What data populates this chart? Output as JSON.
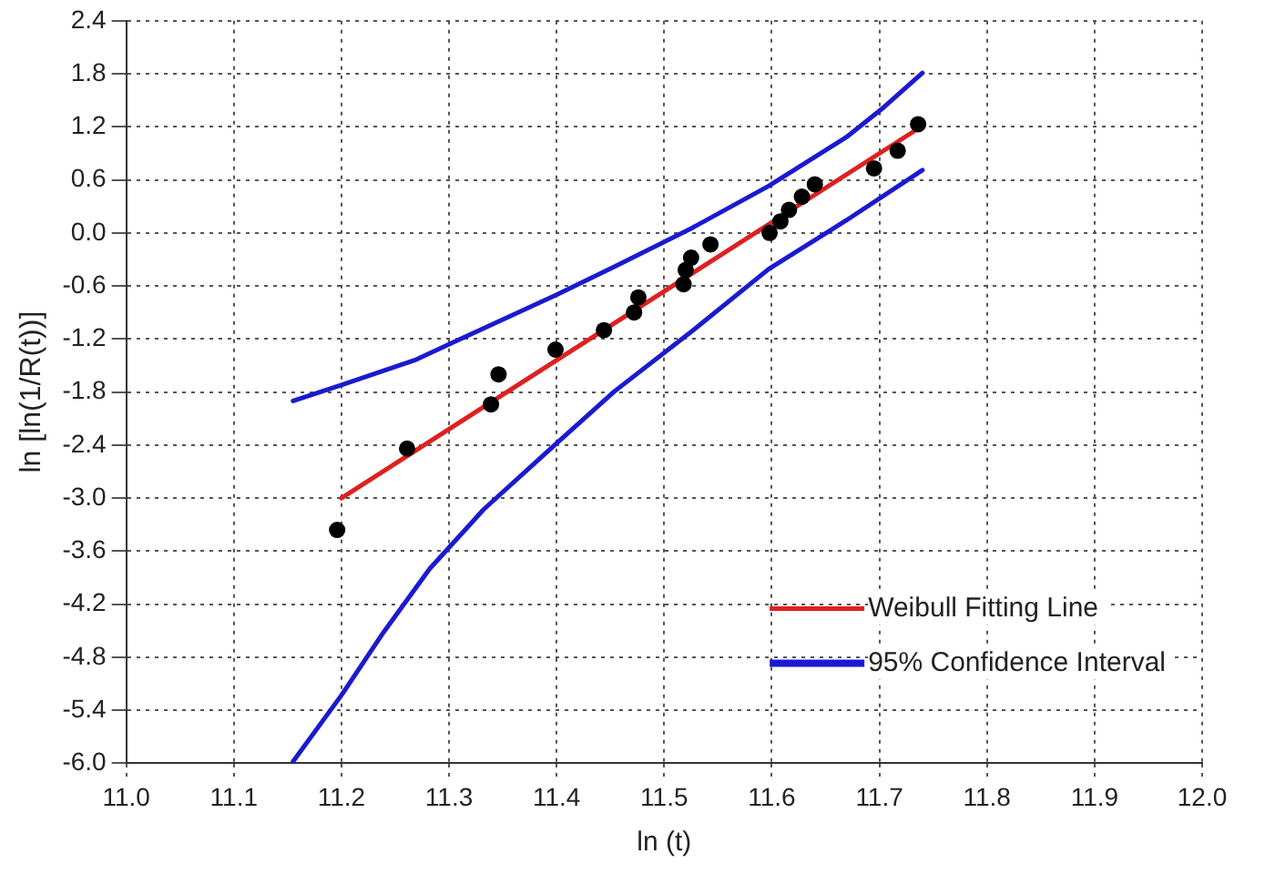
{
  "chart_data": {
    "type": "scatter",
    "xlabel": "ln (t)",
    "ylabel": "ln [ln(1/R(t))]",
    "xlim": [
      11.0,
      12.0
    ],
    "xticks": [
      {
        "value": 11.0,
        "label": "11.0"
      },
      {
        "value": 11.1,
        "label": "11.1"
      },
      {
        "value": 11.2,
        "label": "11.2"
      },
      {
        "value": 11.3,
        "label": "11.3"
      },
      {
        "value": 11.4,
        "label": "11.4"
      },
      {
        "value": 11.5,
        "label": "11.5"
      },
      {
        "value": 11.6,
        "label": "11.6"
      },
      {
        "value": 11.7,
        "label": "11.7"
      },
      {
        "value": 11.8,
        "label": "11.8"
      },
      {
        "value": 11.9,
        "label": "11.9"
      },
      {
        "value": 12.0,
        "label": "12.0"
      }
    ],
    "ylim": [
      -6.0,
      2.4
    ],
    "yticks": [
      {
        "value": -6.0,
        "label": "-6.0"
      },
      {
        "value": -5.4,
        "label": "-5.4"
      },
      {
        "value": -4.8,
        "label": "-4.8"
      },
      {
        "value": -4.2,
        "label": "-4.2"
      },
      {
        "value": -3.6,
        "label": "-3.6"
      },
      {
        "value": -3.0,
        "label": "-3.0"
      },
      {
        "value": -2.4,
        "label": "-2.4"
      },
      {
        "value": -1.8,
        "label": "-1.8"
      },
      {
        "value": -1.2,
        "label": "-1.2"
      },
      {
        "value": -0.6,
        "label": "-0.6"
      },
      {
        "value": 0.0,
        "label": "0.0"
      },
      {
        "value": 0.6,
        "label": "0.6"
      },
      {
        "value": 1.2,
        "label": "1.2"
      },
      {
        "value": 1.8,
        "label": "1.8"
      },
      {
        "value": 2.4,
        "label": "2.4"
      }
    ],
    "grid": true,
    "legend": "bottom right",
    "series": [
      {
        "marker": "circle",
        "color": "#000000",
        "x": [
          11.196,
          11.261,
          11.339,
          11.346,
          11.399,
          11.444,
          11.472,
          11.476,
          11.518,
          11.52,
          11.525,
          11.543,
          11.598,
          11.608,
          11.616,
          11.628,
          11.64,
          11.695,
          11.717,
          11.736
        ],
        "values": [
          -3.36,
          -2.44,
          -1.94,
          -1.6,
          -1.32,
          -1.1,
          -0.9,
          -0.73,
          -0.58,
          -0.42,
          -0.28,
          -0.13,
          0.0,
          0.13,
          0.26,
          0.41,
          0.55,
          0.73,
          0.93,
          1.23
        ]
      },
      {
        "type": "line",
        "marker": "none",
        "name": "Weibull Fitting Line",
        "color": "#e02020",
        "x": [
          11.2,
          11.736
        ],
        "values": [
          -3.0,
          1.18
        ]
      },
      {
        "type": "line",
        "marker": "none",
        "name": "95% Confidence Interval",
        "color": "#1a1ad0",
        "x": [
          11.155,
          11.2,
          11.268,
          11.332,
          11.4,
          11.454,
          11.525,
          11.597,
          11.669,
          11.704,
          11.74
        ],
        "values": [
          -1.9,
          -1.72,
          -1.44,
          -1.08,
          -0.7,
          -0.38,
          0.05,
          0.53,
          1.08,
          1.42,
          1.81
        ]
      },
      {
        "type": "line",
        "marker": "none",
        "color": "#1a1ad0",
        "x": [
          11.155,
          11.2,
          11.239,
          11.282,
          11.332,
          11.4,
          11.454,
          11.525,
          11.597,
          11.669,
          11.74
        ],
        "values": [
          -5.98,
          -5.23,
          -4.52,
          -3.8,
          -3.13,
          -2.38,
          -1.79,
          -1.12,
          -0.41,
          0.14,
          0.71
        ]
      }
    ]
  }
}
